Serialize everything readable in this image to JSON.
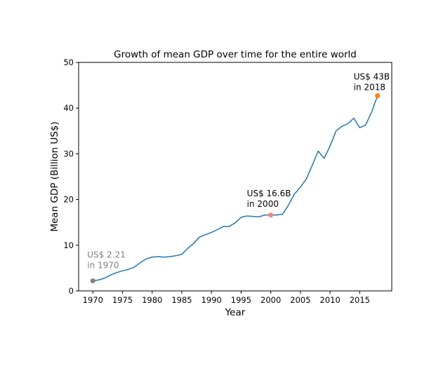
{
  "chart_data": {
    "type": "line",
    "title": "Growth of mean GDP over time for the entire world",
    "xlabel": "Year",
    "ylabel": "Mean GDP (Billion US$)",
    "xlim": [
      1967.6,
      2020.4
    ],
    "ylim": [
      0,
      50
    ],
    "xticks": [
      1970,
      1975,
      1980,
      1985,
      1990,
      1995,
      2000,
      2005,
      2010,
      2015
    ],
    "yticks": [
      0,
      10,
      20,
      30,
      40,
      50
    ],
    "grid": false,
    "line_color": "#1f77b4",
    "series": [
      {
        "x": [
          1970,
          1971,
          1972,
          1973,
          1974,
          1975,
          1976,
          1977,
          1978,
          1979,
          1980,
          1981,
          1982,
          1983,
          1984,
          1985,
          1986,
          1987,
          1988,
          1989,
          1990,
          1991,
          1992,
          1993,
          1994,
          1995,
          1996,
          1997,
          1998,
          1999,
          2000,
          2001,
          2002,
          2003,
          2004,
          2005,
          2006,
          2007,
          2008,
          2009,
          2010,
          2011,
          2012,
          2013,
          2014,
          2015,
          2016,
          2017,
          2018
        ],
        "values": [
          2.21,
          2.4,
          2.8,
          3.5,
          4.0,
          4.4,
          4.7,
          5.2,
          6.2,
          7.0,
          7.4,
          7.5,
          7.4,
          7.5,
          7.7,
          8.0,
          9.3,
          10.4,
          11.8,
          12.3,
          12.8,
          13.4,
          14.1,
          14.1,
          14.9,
          16.1,
          16.4,
          16.3,
          16.2,
          16.6,
          16.6,
          16.6,
          16.8,
          18.8,
          21.2,
          22.7,
          24.5,
          27.5,
          30.6,
          29.0,
          31.7,
          35.0,
          36.0,
          36.6,
          37.8,
          35.7,
          36.3,
          39.1,
          42.7
        ]
      }
    ],
    "highlights": [
      {
        "x": 1970,
        "y": 2.21,
        "color": "#808080",
        "text": [
          "US$ 2.21",
          "in 1970"
        ]
      },
      {
        "x": 2000,
        "y": 16.6,
        "color": "#fa8072",
        "text": [
          "US$ 16.6B",
          "in 2000"
        ]
      },
      {
        "x": 2018,
        "y": 42.7,
        "color": "#ff7f0e",
        "text": [
          "US$ 43B",
          "in 2018"
        ]
      }
    ]
  }
}
